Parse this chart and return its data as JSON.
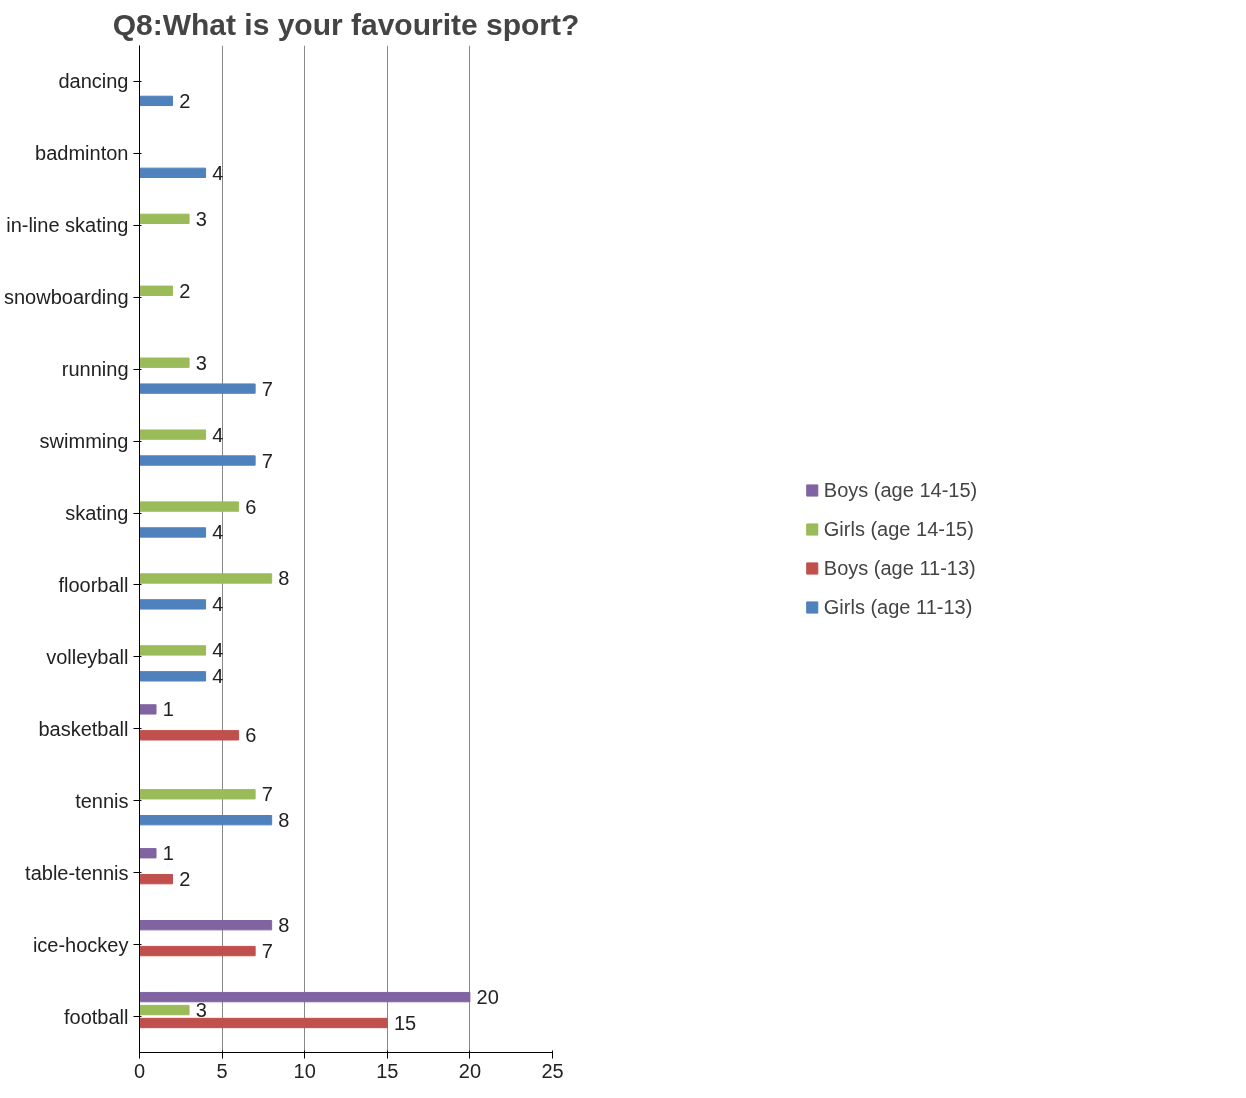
{
  "chart_data": {
    "type": "bar",
    "orientation": "horizontal",
    "title": "Q8:What is your favourite sport?",
    "categories": [
      "dancing",
      "badminton",
      "in-line skating",
      "snowboarding",
      "running",
      "swimming",
      "skating",
      "floorball",
      "volleyball",
      "basketball",
      "tennis",
      "table-tennis",
      "ice-hockey",
      "football"
    ],
    "series": [
      {
        "name": "Boys (age 14-15)",
        "color": "#8064a2",
        "values": [
          null,
          null,
          null,
          null,
          null,
          null,
          null,
          null,
          null,
          1,
          null,
          1,
          8,
          20
        ]
      },
      {
        "name": "Girls (age 14-15)",
        "color": "#9bbb59",
        "values": [
          null,
          null,
          3,
          2,
          3,
          4,
          6,
          8,
          4,
          null,
          7,
          null,
          null,
          3
        ]
      },
      {
        "name": "Boys (age 11-13)",
        "color": "#c0504d",
        "values": [
          null,
          null,
          null,
          null,
          null,
          null,
          null,
          null,
          null,
          6,
          null,
          2,
          7,
          15
        ]
      },
      {
        "name": "Girls (age 11-13)",
        "color": "#4f81bd",
        "values": [
          2,
          4,
          null,
          null,
          7,
          7,
          4,
          4,
          4,
          null,
          8,
          null,
          null,
          null
        ]
      }
    ],
    "xlim": [
      0,
      25
    ],
    "xticks": [
      0,
      5,
      10,
      15,
      20,
      25
    ],
    "grid": "x",
    "legend": "right",
    "data_labels": true
  }
}
